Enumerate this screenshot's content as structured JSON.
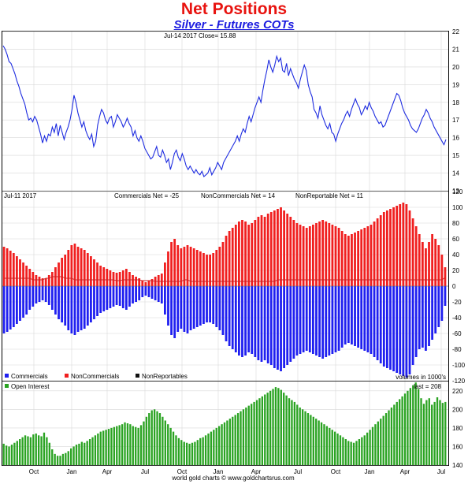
{
  "header": {
    "title": "Net Positions",
    "subtitle": "Silver - Futures COTs"
  },
  "colors": {
    "title": "#e8130f",
    "subtitle": "#1c1ce0",
    "price": "#1f2de0",
    "commercials": "#1f1ff0",
    "noncommercials": "#f01f1f",
    "nonreportables": "#cc2222",
    "open_interest": "#2aa322",
    "grid": "#d8d8d8"
  },
  "footer": {
    "source": "world gold charts © www.goldchartsrus.com"
  },
  "chart_data": [
    {
      "type": "line",
      "header_text": "Jul-14  2017    Close= 15.88",
      "series": [
        {
          "values": [
            21.2,
            21.0,
            20.7,
            20.3,
            20.2,
            19.9,
            19.6,
            19.2,
            18.9,
            18.5,
            18.2,
            17.9,
            17.4,
            17.0,
            17.1,
            16.9,
            17.2,
            17.0,
            16.6,
            16.2,
            15.7,
            16.1,
            15.8,
            16.2,
            16.1,
            16.6,
            16.3,
            16.8,
            16.1,
            16.7,
            16.3,
            15.9,
            16.3,
            16.6,
            17.0,
            17.6,
            18.4,
            18.0,
            17.4,
            17.0,
            16.6,
            16.9,
            16.4,
            16.1,
            15.9,
            16.2,
            15.5,
            15.8,
            16.7,
            17.2,
            17.6,
            17.4,
            17.0,
            16.8,
            17.1,
            17.2,
            16.6,
            16.9,
            17.3,
            17.1,
            16.9,
            16.6,
            16.8,
            17.1,
            16.8,
            16.6,
            16.1,
            16.4,
            16.0,
            15.8,
            16.1,
            15.8,
            15.4,
            15.2,
            15.0,
            14.8,
            14.9,
            15.2,
            15.5,
            15.0,
            14.9,
            15.3,
            15.0,
            14.6,
            14.8,
            14.2,
            14.6,
            15.1,
            15.3,
            14.9,
            14.7,
            15.1,
            14.8,
            14.4,
            14.2,
            14.4,
            14.2,
            14.0,
            14.2,
            14.0,
            13.9,
            14.1,
            13.8,
            13.9,
            14.0,
            14.3,
            13.9,
            14.1,
            14.3,
            14.6,
            14.4,
            14.2,
            14.6,
            14.8,
            15.0,
            15.2,
            15.4,
            15.6,
            15.8,
            16.1,
            15.8,
            16.2,
            16.5,
            16.3,
            16.8,
            17.2,
            16.9,
            17.3,
            17.7,
            18.0,
            18.3,
            18.0,
            18.7,
            19.3,
            19.8,
            20.4,
            20.0,
            19.7,
            20.1,
            20.6,
            20.3,
            20.5,
            19.8,
            19.7,
            20.2,
            19.5,
            19.9,
            19.6,
            19.3,
            19.1,
            18.8,
            19.3,
            19.7,
            20.1,
            19.8,
            19.0,
            18.6,
            18.3,
            17.6,
            17.4,
            17.1,
            17.8,
            17.3,
            17.0,
            16.7,
            16.5,
            16.8,
            16.3,
            16.2,
            15.8,
            16.2,
            16.5,
            16.8,
            17.0,
            17.3,
            17.5,
            17.2,
            17.6,
            17.9,
            18.2,
            17.9,
            17.7,
            17.3,
            17.5,
            17.8,
            17.6,
            18.0,
            17.7,
            17.5,
            17.2,
            17.0,
            16.8,
            16.9,
            16.6,
            16.7,
            17.0,
            17.3,
            17.6,
            17.9,
            18.2,
            18.5,
            18.4,
            18.1,
            17.7,
            17.4,
            17.2,
            17.0,
            16.7,
            16.5,
            16.4,
            16.3,
            16.5,
            16.8,
            17.1,
            17.3,
            17.6,
            17.4,
            17.1,
            16.9,
            16.6,
            16.4,
            16.2,
            16.0,
            15.8,
            15.6,
            15.9
          ]
        }
      ],
      "ylim": [
        13,
        22
      ],
      "yticks": [
        13,
        14,
        15,
        16,
        17,
        18,
        19,
        20,
        21,
        22
      ]
    },
    {
      "type": "bar",
      "header_text": {
        "date": "Jul-11  2017",
        "commercials": "Commercials Net = -25",
        "noncommercials": "NonCommercials Net = 14",
        "nonreportables": "NonReportable Net = 11"
      },
      "series": [
        {
          "name": "Commercials",
          "values": [
            -60,
            -58,
            -55,
            -52,
            -48,
            -44,
            -40,
            -36,
            -30,
            -26,
            -22,
            -20,
            -18,
            -20,
            -24,
            -30,
            -36,
            -42,
            -46,
            -50,
            -56,
            -60,
            -62,
            -58,
            -56,
            -54,
            -50,
            -46,
            -42,
            -38,
            -34,
            -32,
            -30,
            -28,
            -26,
            -24,
            -25,
            -28,
            -30,
            -26,
            -22,
            -20,
            -18,
            -14,
            -12,
            -14,
            -16,
            -18,
            -20,
            -22,
            -36,
            -50,
            -62,
            -66,
            -58,
            -54,
            -58,
            -60,
            -56,
            -54,
            -52,
            -50,
            -48,
            -46,
            -46,
            -48,
            -52,
            -56,
            -62,
            -70,
            -76,
            -80,
            -84,
            -88,
            -90,
            -88,
            -84,
            -86,
            -90,
            -94,
            -96,
            -94,
            -98,
            -100,
            -104,
            -106,
            -108,
            -104,
            -100,
            -96,
            -92,
            -88,
            -86,
            -84,
            -82,
            -84,
            -86,
            -88,
            -90,
            -92,
            -90,
            -88,
            -86,
            -84,
            -82,
            -78,
            -74,
            -72,
            -74,
            -76,
            -78,
            -80,
            -82,
            -84,
            -86,
            -90,
            -94,
            -98,
            -102,
            -104,
            -106,
            -108,
            -110,
            -112,
            -114,
            -116,
            -112,
            -100,
            -90,
            -80,
            -78,
            -82,
            -76,
            -68,
            -60,
            -52,
            -44,
            -25
          ]
        },
        {
          "name": "NonCommercials",
          "values": [
            50,
            48,
            45,
            42,
            38,
            34,
            30,
            26,
            22,
            18,
            14,
            12,
            10,
            10,
            14,
            18,
            24,
            30,
            36,
            40,
            46,
            52,
            54,
            50,
            48,
            46,
            42,
            38,
            34,
            30,
            26,
            24,
            22,
            20,
            18,
            17,
            18,
            20,
            22,
            18,
            14,
            12,
            10,
            7,
            5,
            7,
            9,
            12,
            14,
            16,
            30,
            44,
            56,
            60,
            52,
            48,
            50,
            52,
            50,
            48,
            46,
            44,
            42,
            40,
            40,
            42,
            46,
            50,
            56,
            64,
            70,
            74,
            78,
            82,
            84,
            82,
            78,
            80,
            84,
            88,
            90,
            88,
            92,
            94,
            96,
            98,
            100,
            96,
            92,
            88,
            84,
            80,
            78,
            76,
            74,
            76,
            78,
            80,
            82,
            84,
            82,
            80,
            78,
            76,
            74,
            70,
            66,
            64,
            66,
            68,
            70,
            72,
            74,
            76,
            78,
            82,
            86,
            90,
            94,
            96,
            98,
            100,
            102,
            104,
            106,
            104,
            96,
            86,
            76,
            66,
            56,
            48,
            56,
            66,
            60,
            52,
            40,
            24,
            14
          ]
        },
        {
          "name": "NonReportables",
          "values": [
            10,
            10,
            10,
            10,
            10,
            10,
            10,
            10,
            10,
            8,
            8,
            8,
            8,
            10,
            10,
            12,
            12,
            12,
            12,
            10,
            10,
            10,
            8,
            8,
            8,
            8,
            8,
            8,
            8,
            8,
            8,
            8,
            8,
            8,
            8,
            7,
            7,
            8,
            8,
            8,
            8,
            8,
            8,
            7,
            7,
            7,
            7,
            6,
            6,
            6,
            6,
            6,
            6,
            6,
            6,
            6,
            8,
            8,
            6,
            6,
            6,
            6,
            6,
            6,
            6,
            6,
            6,
            6,
            6,
            6,
            6,
            6,
            6,
            6,
            6,
            6,
            6,
            6,
            6,
            6,
            6,
            6,
            6,
            6,
            6,
            8,
            8,
            8,
            8,
            8,
            8,
            8,
            8,
            8,
            8,
            8,
            8,
            8,
            8,
            8,
            8,
            8,
            8,
            8,
            8,
            8,
            8,
            8,
            8,
            8,
            8,
            8,
            8,
            8,
            8,
            8,
            8,
            8,
            8,
            8,
            8,
            8,
            8,
            8,
            8,
            8,
            8,
            8,
            8,
            8,
            8,
            8,
            8,
            8,
            8,
            8,
            8,
            11
          ]
        }
      ],
      "ylim": [
        -120,
        120
      ],
      "yticks": [
        -120,
        -100,
        -80,
        -60,
        -40,
        -20,
        0,
        20,
        40,
        60,
        80,
        100,
        120
      ],
      "legend": [
        "Commercials",
        "NonCommercials",
        "NonReportables"
      ],
      "unit_note": "volumes in 1000's"
    },
    {
      "type": "bar",
      "legend": [
        "Open Interest"
      ],
      "last_text": "last = 208",
      "series": [
        {
          "name": "Open Interest",
          "values": [
            163,
            161,
            160,
            162,
            164,
            166,
            168,
            170,
            172,
            171,
            170,
            173,
            174,
            172,
            171,
            175,
            170,
            164,
            157,
            152,
            150,
            150,
            152,
            153,
            155,
            158,
            160,
            162,
            163,
            165,
            164,
            166,
            168,
            170,
            172,
            174,
            176,
            177,
            178,
            179,
            180,
            181,
            182,
            183,
            184,
            186,
            185,
            184,
            182,
            181,
            180,
            183,
            187,
            192,
            196,
            199,
            200,
            198,
            196,
            192,
            188,
            184,
            180,
            176,
            172,
            169,
            167,
            165,
            164,
            163,
            164,
            165,
            167,
            169,
            170,
            172,
            174,
            176,
            178,
            180,
            182,
            184,
            186,
            188,
            190,
            192,
            194,
            196,
            198,
            200,
            202,
            204,
            206,
            208,
            210,
            212,
            214,
            216,
            218,
            220,
            222,
            224,
            223,
            221,
            218,
            215,
            212,
            210,
            208,
            205,
            202,
            200,
            198,
            196,
            194,
            192,
            190,
            188,
            186,
            184,
            182,
            180,
            178,
            176,
            174,
            172,
            170,
            168,
            166,
            165,
            164,
            166,
            168,
            170,
            172,
            175,
            178,
            181,
            184,
            187,
            190,
            193,
            196,
            199,
            202,
            205,
            208,
            211,
            214,
            217,
            220,
            223,
            226,
            229,
            222,
            212,
            206,
            210,
            212,
            205,
            208,
            213,
            210,
            207,
            208
          ]
        }
      ],
      "ylim": [
        140,
        230
      ],
      "yticks": [
        140,
        160,
        180,
        200,
        220
      ]
    }
  ],
  "x_axis": {
    "labels": [
      "Oct",
      "Jan",
      "Apr",
      "Jul",
      "Oct",
      "Jan",
      "Apr",
      "Jul",
      "Oct",
      "Jan",
      "Apr",
      "Jul"
    ]
  }
}
